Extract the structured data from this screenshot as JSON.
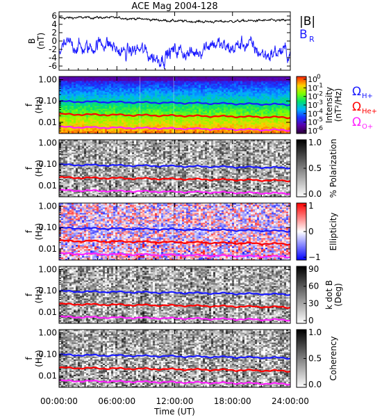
{
  "chart_data": [
    {
      "type": "line",
      "title": "ACE Mag 2004-128",
      "ylabel_lines": [
        "B",
        "(nT)"
      ],
      "ylim": [
        -7,
        7
      ],
      "y_ticks": [
        "6",
        "4",
        "2",
        "0",
        "-2",
        "-4",
        "-6"
      ],
      "y_tick_values": [
        6,
        4,
        2,
        0,
        -2,
        -4,
        -6
      ],
      "xlim_hours": [
        0,
        24
      ],
      "series": [
        {
          "name": "|B|",
          "color": "#000000",
          "mean": 5.5,
          "noise": 0.35
        },
        {
          "name": "B",
          "subscript": "R",
          "color": "#1a1aff",
          "mean": -2.2,
          "noise": 2.3
        }
      ]
    },
    {
      "type": "heatmap",
      "ylabel_lines": [
        "f",
        "(Hz)"
      ],
      "y_ticks": [
        "1.00",
        "0.10",
        "0.01"
      ],
      "y_tick_values": [
        1.0,
        0.1,
        0.01
      ],
      "ylim": [
        0.003,
        1.4
      ],
      "colorscale": "rainbow",
      "colorbar_label_lines": [
        "Intensity",
        "(nT²/Hz)"
      ],
      "colorbar_ticks": [
        {
          "base": "10",
          "exp": "0"
        },
        {
          "base": "10",
          "exp": "-1"
        },
        {
          "base": "10",
          "exp": "-2"
        },
        {
          "base": "10",
          "exp": "-3"
        },
        {
          "base": "10",
          "exp": "-4"
        },
        {
          "base": "10",
          "exp": "-5"
        },
        {
          "base": "10",
          "exp": "-6"
        }
      ],
      "lines": [
        {
          "name": "Ω",
          "subscript": "H+",
          "color": "#1a1aff",
          "start": 0.095,
          "end": 0.068
        },
        {
          "name": "Ω",
          "subscript": "He+",
          "color": "#ff0000",
          "start": 0.024,
          "end": 0.017
        },
        {
          "name": "Ω",
          "subscript": "O+",
          "color": "#ff22ff",
          "start": 0.006,
          "end": 0.0043
        }
      ]
    },
    {
      "type": "heatmap",
      "ylabel_lines": [
        "f",
        "(Hz)"
      ],
      "y_ticks": [
        "1.00",
        "0.10",
        "0.01"
      ],
      "y_tick_values": [
        1.0,
        0.1,
        0.01
      ],
      "ylim": [
        0.003,
        1.4
      ],
      "colorscale": "gray",
      "colorbar_label_lines": [
        "% Polarization"
      ],
      "colorbar_ticks": [
        {
          "base": "1.0"
        },
        {
          "base": "0.5"
        },
        {
          "base": "0.0"
        }
      ]
    },
    {
      "type": "heatmap",
      "ylabel_lines": [
        "f",
        "(Hz)"
      ],
      "y_ticks": [
        "1.00",
        "0.10",
        "0.01"
      ],
      "y_tick_values": [
        1.0,
        0.1,
        0.01
      ],
      "ylim": [
        0.003,
        1.4
      ],
      "colorscale": "bwr",
      "colorbar_label_lines": [
        "Ellipticity"
      ],
      "colorbar_ticks": [
        {
          "base": "1"
        },
        {
          "base": "0"
        },
        {
          "base": "−1"
        }
      ]
    },
    {
      "type": "heatmap",
      "ylabel_lines": [
        "f",
        "(Hz)"
      ],
      "y_ticks": [
        "1.00",
        "0.10",
        "0.01"
      ],
      "y_tick_values": [
        1.0,
        0.1,
        0.01
      ],
      "ylim": [
        0.003,
        1.4
      ],
      "colorscale": "gray",
      "colorbar_label_lines": [
        "k dot B",
        "(Deg)"
      ],
      "colorbar_ticks": [
        {
          "base": "90"
        },
        {
          "base": "60"
        },
        {
          "base": "30"
        },
        {
          "base": "0"
        }
      ]
    },
    {
      "type": "heatmap",
      "ylabel_lines": [
        "f",
        "(Hz)"
      ],
      "y_ticks": [
        "1.00",
        "0.10",
        "0.01"
      ],
      "y_tick_values": [
        1.0,
        0.1,
        0.01
      ],
      "ylim": [
        0.003,
        1.4
      ],
      "colorscale": "gray",
      "colorbar_label_lines": [
        "Coherency"
      ],
      "colorbar_ticks": [
        {
          "base": "1.0"
        },
        {
          "base": "0.5"
        },
        {
          "base": "0.0"
        }
      ],
      "x_ticks": [
        "00:00:00",
        "06:00:00",
        "12:00:00",
        "18:00:00",
        "24:00:00"
      ],
      "x_tick_hours": [
        0,
        6,
        12,
        18,
        24
      ],
      "xlabel": "Time (UT)"
    }
  ]
}
